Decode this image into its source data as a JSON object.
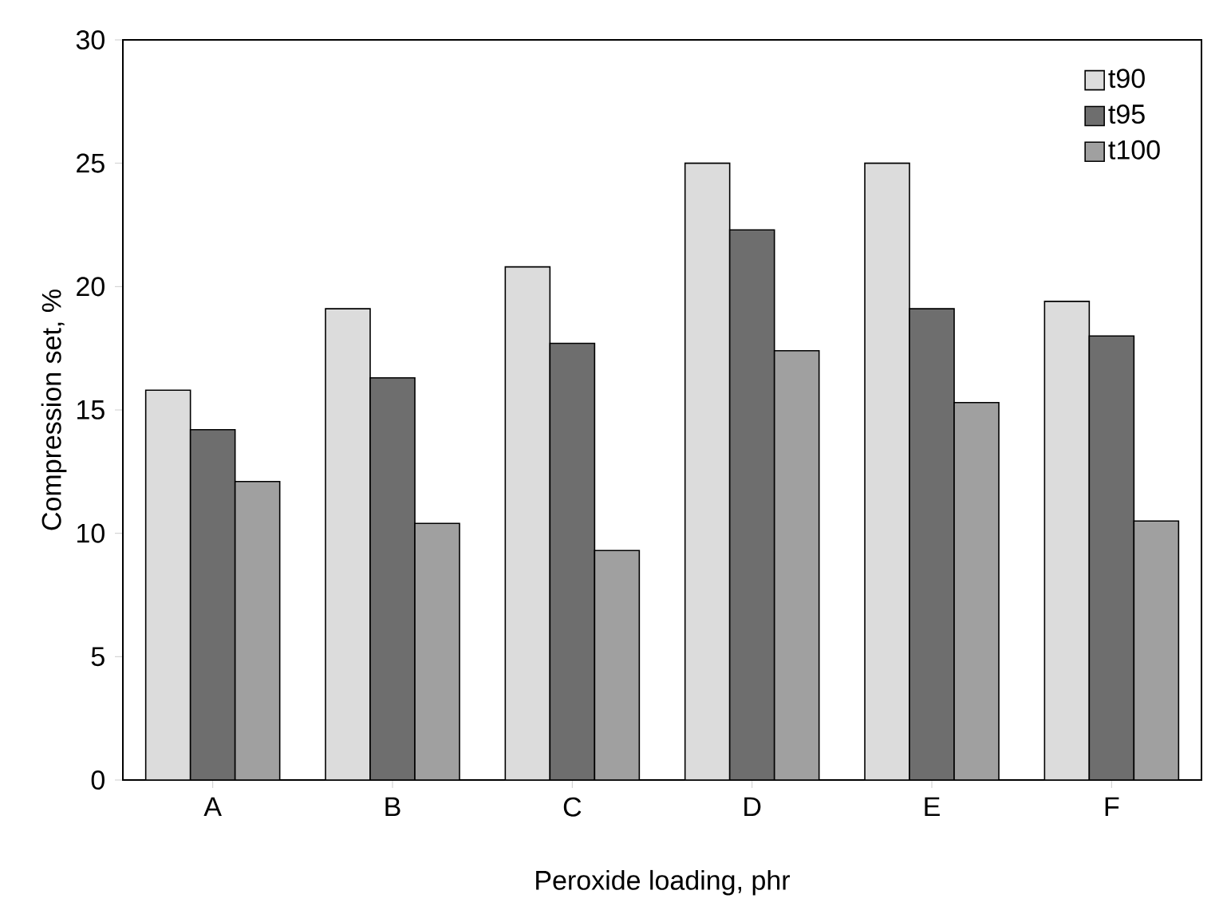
{
  "chart_data": {
    "type": "bar",
    "xlabel": "Peroxide loading, phr",
    "ylabel": "Compression set, %",
    "categories": [
      "A",
      "B",
      "C",
      "D",
      "E",
      "F"
    ],
    "series": [
      {
        "name": "t90",
        "color": "#dcdcdc",
        "values": [
          15.8,
          19.1,
          20.8,
          25.0,
          25.0,
          19.4
        ]
      },
      {
        "name": "t95",
        "color": "#6e6e6e",
        "values": [
          14.2,
          16.3,
          17.7,
          22.3,
          19.1,
          18.0
        ]
      },
      {
        "name": "t100",
        "color": "#a0a0a0",
        "values": [
          12.1,
          10.4,
          9.3,
          17.4,
          15.3,
          10.5
        ]
      }
    ],
    "ylim": [
      0,
      30
    ],
    "yticks": [
      0,
      5,
      10,
      15,
      20,
      25,
      30
    ],
    "grid": false,
    "legend": "top right"
  }
}
